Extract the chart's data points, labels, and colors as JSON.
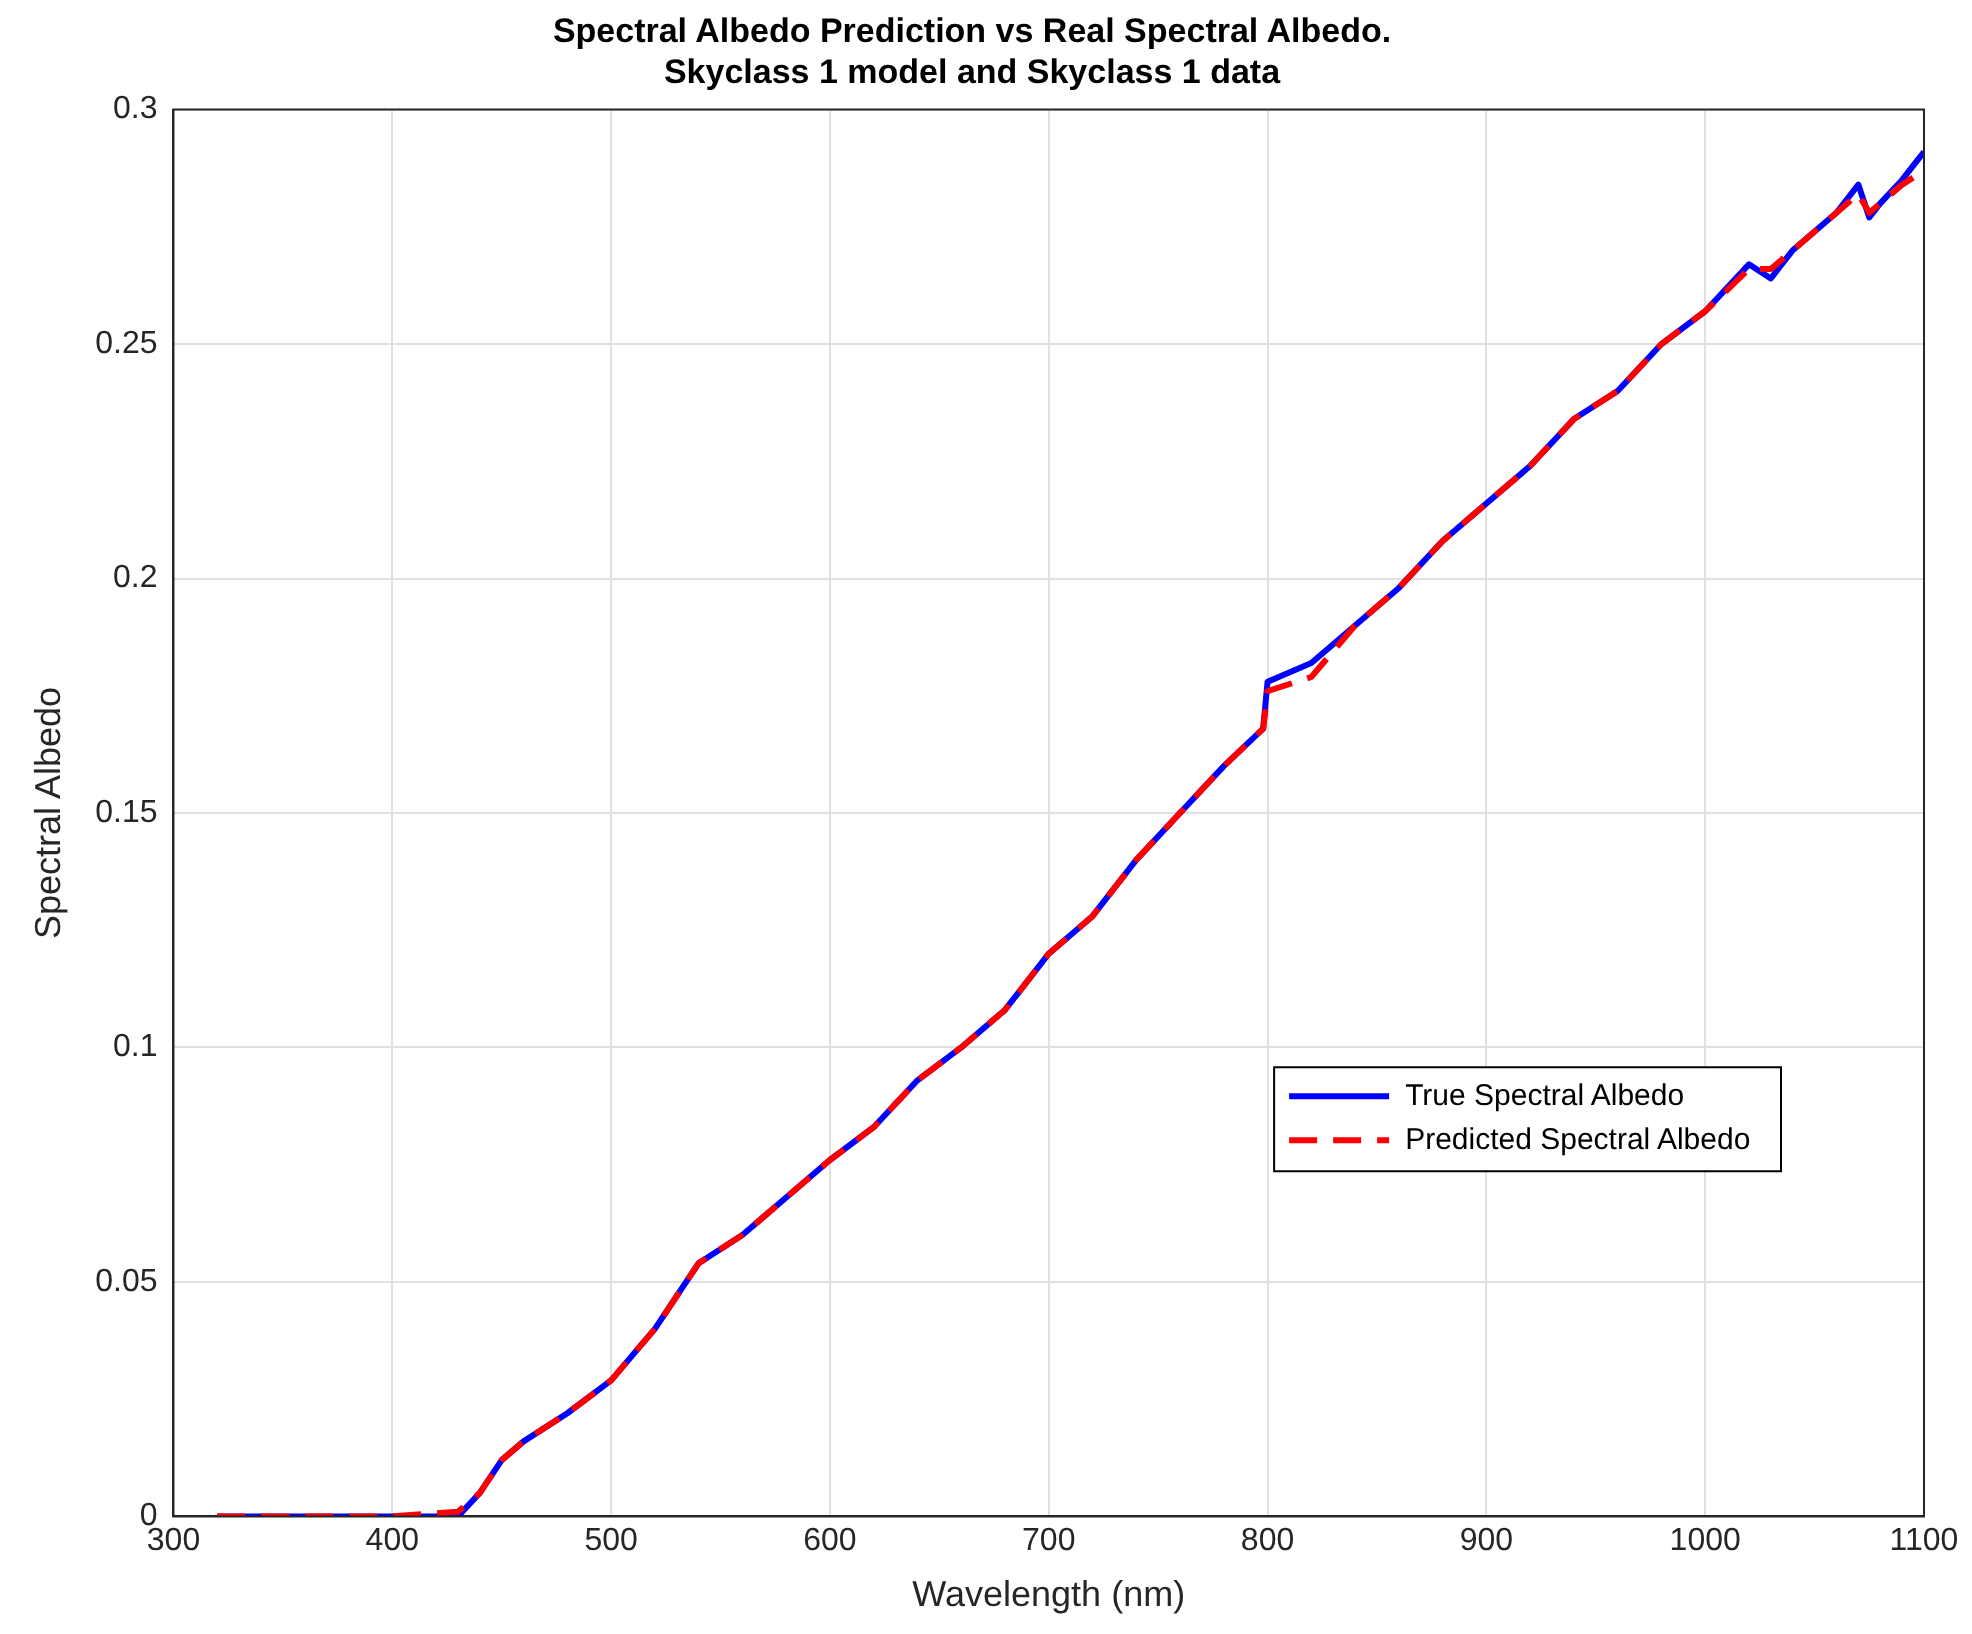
{
  "chart_data": {
    "type": "line",
    "title": "Spectral Albedo Prediction vs Real Spectral Albedo.\nSkyclass 1 model and Skyclass 1 data",
    "xlabel": "Wavelength (nm)",
    "ylabel": "Spectral Albedo",
    "x": [
      320,
      400,
      430,
      440,
      450,
      460,
      480,
      500,
      520,
      540,
      560,
      580,
      600,
      620,
      640,
      660,
      680,
      700,
      720,
      740,
      760,
      780,
      798,
      800,
      820,
      840,
      860,
      880,
      900,
      920,
      940,
      960,
      980,
      1000,
      1020,
      1030,
      1040,
      1060,
      1070,
      1075,
      1080,
      1090,
      1100
    ],
    "series": [
      {
        "name": "True Spectral Albedo",
        "color": "#0000ff",
        "line_style": "solid",
        "values": [
          0,
          0,
          0,
          0.005,
          0.012,
          0.016,
          0.022,
          0.029,
          0.04,
          0.054,
          0.06,
          0.068,
          0.076,
          0.083,
          0.093,
          0.1,
          0.108,
          0.12,
          0.128,
          0.14,
          0.15,
          0.16,
          0.168,
          0.178,
          0.182,
          0.19,
          0.198,
          0.208,
          0.216,
          0.224,
          0.234,
          0.24,
          0.25,
          0.257,
          0.267,
          0.264,
          0.27,
          0.278,
          0.284,
          0.277,
          0.28,
          0.285,
          0.291
        ]
      },
      {
        "name": "Predicted Spectral Albedo",
        "color": "#ff0000",
        "line_style": "dashed",
        "values": [
          0,
          0,
          0.001,
          0.005,
          0.012,
          0.016,
          0.022,
          0.029,
          0.04,
          0.054,
          0.06,
          0.068,
          0.076,
          0.083,
          0.093,
          0.1,
          0.108,
          0.12,
          0.128,
          0.14,
          0.15,
          0.16,
          0.168,
          0.176,
          0.179,
          0.19,
          0.198,
          0.208,
          0.216,
          0.224,
          0.234,
          0.24,
          0.25,
          0.257,
          0.266,
          0.266,
          0.27,
          0.278,
          0.282,
          0.278,
          0.28,
          0.284,
          0.287
        ]
      }
    ],
    "xlim": [
      300,
      1100
    ],
    "xticks": [
      300,
      400,
      500,
      600,
      700,
      800,
      900,
      1000,
      1100
    ],
    "ylim": [
      0,
      0.3
    ],
    "yticks": [
      0,
      0.05,
      0.1,
      0.15,
      0.2,
      0.25,
      0.3
    ],
    "grid": true,
    "legend": "right",
    "marker": "none"
  }
}
